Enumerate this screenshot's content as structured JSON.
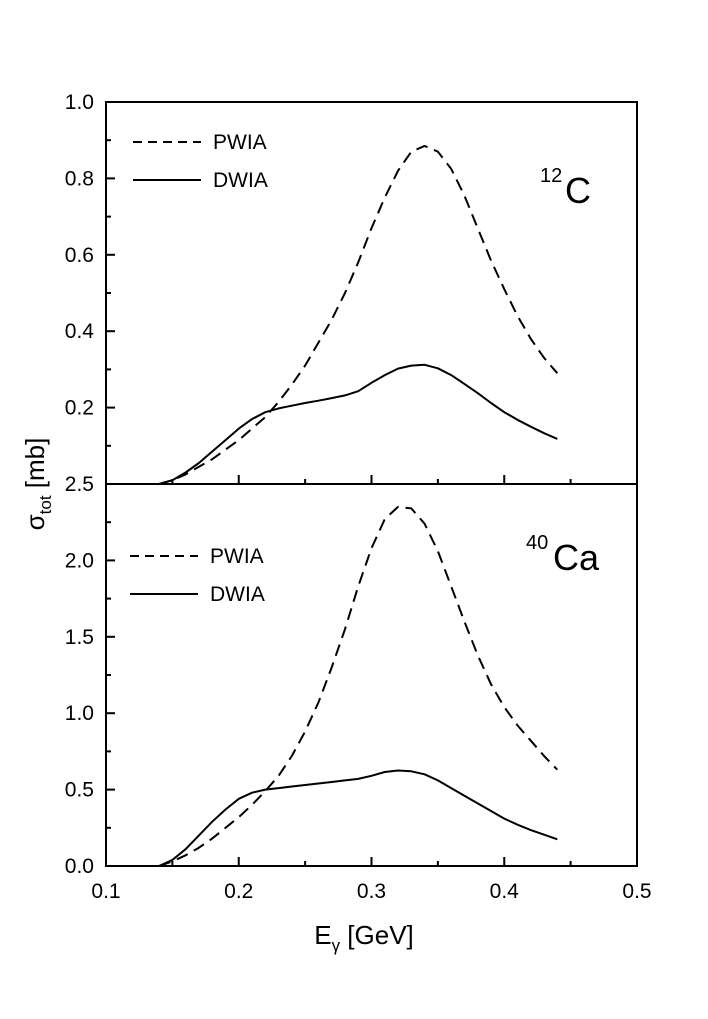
{
  "chart_data": [
    {
      "type": "line",
      "panel": "top",
      "nucleus": {
        "mass_number": "12",
        "symbol": "C"
      },
      "xlim": [
        0.1,
        0.5
      ],
      "ylim": [
        0.0,
        1.0
      ],
      "x_ticks": [
        "0.1",
        "0.2",
        "0.3",
        "0.4",
        "0.5"
      ],
      "y_ticks": [
        {
          "value": 0.2,
          "label": "0.2"
        },
        {
          "value": 0.4,
          "label": "0.4"
        },
        {
          "value": 0.6,
          "label": "0.6"
        },
        {
          "value": 0.8,
          "label": "0.8"
        },
        {
          "value": 1.0,
          "label": "1.0"
        }
      ],
      "legend": "top-left",
      "grid": false,
      "series": [
        {
          "name": "PWIA",
          "style": "dashed",
          "x": [
            0.14,
            0.15,
            0.16,
            0.17,
            0.18,
            0.19,
            0.2,
            0.21,
            0.22,
            0.23,
            0.24,
            0.25,
            0.26,
            0.27,
            0.28,
            0.29,
            0.3,
            0.31,
            0.32,
            0.33,
            0.34,
            0.35,
            0.36,
            0.37,
            0.38,
            0.39,
            0.4,
            0.41,
            0.42,
            0.43,
            0.44
          ],
          "y": [
            0.0,
            0.01,
            0.025,
            0.045,
            0.065,
            0.09,
            0.115,
            0.145,
            0.175,
            0.215,
            0.26,
            0.31,
            0.37,
            0.43,
            0.5,
            0.58,
            0.67,
            0.75,
            0.82,
            0.87,
            0.885,
            0.87,
            0.825,
            0.755,
            0.67,
            0.585,
            0.51,
            0.44,
            0.38,
            0.33,
            0.29
          ]
        },
        {
          "name": "DWIA",
          "style": "solid",
          "x": [
            0.14,
            0.15,
            0.16,
            0.17,
            0.18,
            0.19,
            0.2,
            0.21,
            0.22,
            0.23,
            0.24,
            0.25,
            0.26,
            0.27,
            0.28,
            0.29,
            0.3,
            0.31,
            0.32,
            0.33,
            0.34,
            0.35,
            0.36,
            0.37,
            0.38,
            0.39,
            0.4,
            0.41,
            0.42,
            0.43,
            0.44
          ],
          "y": [
            0.0,
            0.01,
            0.03,
            0.055,
            0.085,
            0.115,
            0.145,
            0.17,
            0.188,
            0.198,
            0.205,
            0.212,
            0.218,
            0.225,
            0.232,
            0.243,
            0.265,
            0.285,
            0.302,
            0.31,
            0.312,
            0.303,
            0.285,
            0.262,
            0.238,
            0.212,
            0.188,
            0.168,
            0.15,
            0.133,
            0.118
          ]
        }
      ],
      "legend_entries": [
        "PWIA",
        "DWIA"
      ]
    },
    {
      "type": "line",
      "panel": "bottom",
      "nucleus": {
        "mass_number": "40",
        "symbol": "Ca"
      },
      "xlim": [
        0.1,
        0.5
      ],
      "ylim": [
        0.0,
        2.5
      ],
      "x_ticks": [
        "0.1",
        "0.2",
        "0.3",
        "0.4",
        "0.5"
      ],
      "y_ticks": [
        {
          "value": 0.0,
          "label": "0.0"
        },
        {
          "value": 0.5,
          "label": "0.5"
        },
        {
          "value": 1.0,
          "label": "1.0"
        },
        {
          "value": 1.5,
          "label": "1.5"
        },
        {
          "value": 2.0,
          "label": "2.0"
        },
        {
          "value": 2.5,
          "label": "2.5"
        }
      ],
      "legend": "top-left",
      "grid": false,
      "series": [
        {
          "name": "PWIA",
          "style": "dashed",
          "x": [
            0.14,
            0.15,
            0.16,
            0.17,
            0.18,
            0.19,
            0.2,
            0.21,
            0.22,
            0.23,
            0.24,
            0.25,
            0.26,
            0.27,
            0.28,
            0.29,
            0.3,
            0.31,
            0.32,
            0.33,
            0.34,
            0.35,
            0.36,
            0.37,
            0.38,
            0.39,
            0.4,
            0.41,
            0.42,
            0.43,
            0.44
          ],
          "y": [
            0.0,
            0.03,
            0.07,
            0.12,
            0.18,
            0.25,
            0.32,
            0.4,
            0.49,
            0.59,
            0.72,
            0.88,
            1.07,
            1.3,
            1.55,
            1.83,
            2.08,
            2.27,
            2.35,
            2.34,
            2.24,
            2.06,
            1.83,
            1.6,
            1.38,
            1.19,
            1.04,
            0.92,
            0.82,
            0.72,
            0.63
          ]
        },
        {
          "name": "DWIA",
          "style": "solid",
          "x": [
            0.14,
            0.15,
            0.16,
            0.17,
            0.18,
            0.19,
            0.2,
            0.21,
            0.22,
            0.23,
            0.24,
            0.25,
            0.26,
            0.27,
            0.28,
            0.29,
            0.3,
            0.31,
            0.32,
            0.33,
            0.34,
            0.35,
            0.36,
            0.37,
            0.38,
            0.39,
            0.4,
            0.41,
            0.42,
            0.43,
            0.44
          ],
          "y": [
            0.0,
            0.04,
            0.11,
            0.2,
            0.29,
            0.37,
            0.44,
            0.48,
            0.5,
            0.51,
            0.52,
            0.53,
            0.54,
            0.55,
            0.56,
            0.57,
            0.59,
            0.615,
            0.625,
            0.62,
            0.6,
            0.56,
            0.51,
            0.46,
            0.41,
            0.36,
            0.31,
            0.27,
            0.235,
            0.205,
            0.175
          ]
        }
      ],
      "legend_entries": [
        "PWIA",
        "DWIA"
      ]
    }
  ],
  "shared": {
    "ylabel_main": "σ",
    "ylabel_sub": "tot",
    "ylabel_unit": " [mb]",
    "xlabel_main": "E",
    "xlabel_sub": "γ",
    "xlabel_unit": " [GeV]",
    "line_color": "#000000",
    "background": "#ffffff"
  }
}
